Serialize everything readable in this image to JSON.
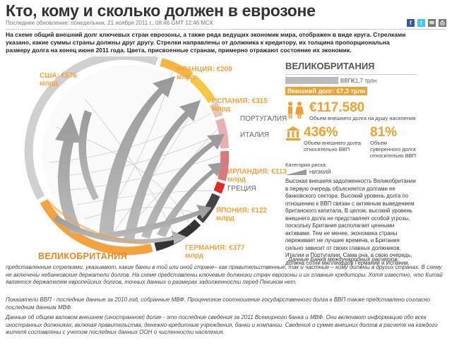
{
  "header": {
    "title": "Кто, кому и сколько должен в еврозоне",
    "updated": "Последнее обновление: понедельник, 21 ноября 2011 г., 08:46 GMT 12:46 МСК"
  },
  "share_icons": [
    {
      "name": "facebook-icon",
      "glyph": "f",
      "color": "#3b5998"
    },
    {
      "name": "twitter-icon",
      "glyph": "t",
      "color": "#33ccff"
    },
    {
      "name": "email-icon",
      "glyph": "✉",
      "color": "#777"
    },
    {
      "name": "print-icon",
      "glyph": "⎙",
      "color": "#777"
    }
  ],
  "lead": "На схеме общий внешний долг ключевых стран еврозоны, а также ряда ведущих экономик мира, отображен в виде круга. Стрелками указано, какие суммы страны должны друг другу. Стрелки направлены от должника к кредитору, их толщина пропорциональна размеру долга на конец июня 2011 года. Цвета, присвоенные странам, примерно отражают состояние их экономик.",
  "circle_labels": {
    "usa": [
      "США: €576",
      "млрд"
    ],
    "france": [
      "ФРАНЦИЯ: €209",
      "млрд"
    ],
    "spain": [
      "ИСПАНИЯ: €315",
      "млрд"
    ],
    "portugal": "ПОРТУГАЛИЯ",
    "italy": "ИТАЛИЯ",
    "ireland": [
      "ИРЛАНДИЯ: €113",
      "млрд"
    ],
    "greece": "ГРЕЦИЯ",
    "japan": [
      "ЯПОНИЯ: €122",
      "млрд"
    ],
    "germany": [
      "ГЕРМАНИЯ: €377",
      "млрд"
    ],
    "uk": "ВЕЛИКОБРИТАНИЯ"
  },
  "colors": {
    "orange": "#f2a340",
    "yellow": "#f8c740",
    "gray": "#d0d0d0",
    "red": "#e12a1f",
    "pink": "#e8a3a3",
    "dark": "#333333"
  },
  "panel": {
    "country": "ВЕЛИКОБРИТАНИЯ",
    "gdp_label": "ВВП€1,7 трлн",
    "debt_label": "Внешний долг: €7,3 трлн",
    "per_capita": "€117.580",
    "per_capita_caption": "Объем внешнего долга на душу населения",
    "pct1": "436%",
    "pct1_caption": "Объем внешнего долга относительно ВВП",
    "pct2": "81%",
    "pct2_caption": "Объем суверенного долга относительно ВВП",
    "risk_label": "Категория риска:",
    "risk_value": "НИЗКИЙ",
    "text": "Высокая внешняя задолженность Великобритании в первую очередь объясняется долгами ее банковского сектора. Высокий уровень долга по отношению к ВВП связан с активным выведением британского капитала. В целом, высокий уровень внешнего долга не представляет особой угрозы, поскольку Британия располагает ценными активами. Тем не менее, экономика страны переживает не лучшие времена, и Британия сильно зависит от своих главных должников, Италии и Португалии. Сама она, в свою очередь, должна сотни миллиардов Германии и Испании."
  },
  "footer": {
    "note": "Данные Банка международных расчетов,",
    "p1": "представленные стрелками, указывают, какие банки в той или иной стране– как правительственные, так и частные – кому должны в других странах. В схему не включены небанковские держатели долгов. На схеме представлены ключевые должники стран еврозоны и их главные кредиторы. Хотя известно, что Китай является держателем европейских долгов, точных данных о размерах задолженности перед Пекином нет.",
    "p2": "Показатели ВВП - последние данные за 2010 год, собранные МВФ. Процентное соотношение государственного долга к ВВП также представлено согласно последним данным МВФ.",
    "p3": "Данные об общем валовом внешнем (иностранном) долге - это последние сведения за 2011 Всемирного банка и МВФ. Они включают информацию обо всех иностранных должниках, включая правительства, денежно-кредитные учреждения, банки и компании. Сведения о сумме внешних долгов в расчете на каждого жителя составлены с учетом последних данных ООН о численности населения."
  }
}
